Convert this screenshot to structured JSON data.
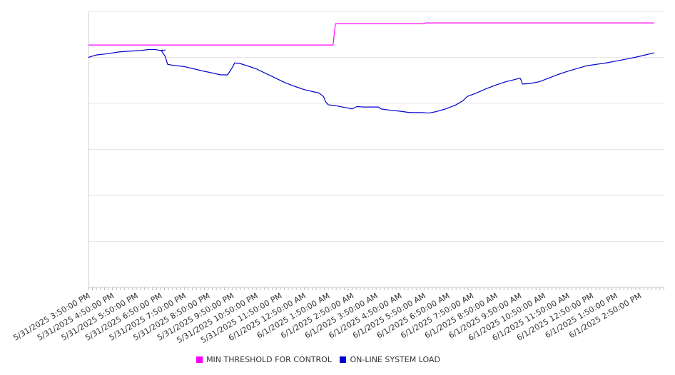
{
  "chart_data": {
    "type": "line",
    "title": "",
    "xlabel": "",
    "ylabel": "",
    "ylim": [
      0,
      6
    ],
    "grid": true,
    "legend_position": "bottom",
    "x_ticks": [
      "5/31/2025 3:50:00 PM",
      "5/31/2025 4:50:00 PM",
      "5/31/2025 5:50:00 PM",
      "5/31/2025 6:50:00 PM",
      "5/31/2025 7:50:00 PM",
      "5/31/2025 8:50:00 PM",
      "5/31/2025 9:50:00 PM",
      "5/31/2025 10:50:00 PM",
      "5/31/2025 11:50:00 PM",
      "6/1/2025 12:50:00 AM",
      "6/1/2025 1:50:00 AM",
      "6/1/2025 2:50:00 AM",
      "6/1/2025 3:50:00 AM",
      "6/1/2025 4:50:00 AM",
      "6/1/2025 5:50:00 AM",
      "6/1/2025 6:50:00 AM",
      "6/1/2025 7:50:00 AM",
      "6/1/2025 8:50:00 AM",
      "6/1/2025 9:50:00 AM",
      "6/1/2025 10:50:00 AM",
      "6/1/2025 11:50:00 AM",
      "6/1/2025 12:50:00 PM",
      "6/1/2025 1:50:00 PM",
      "6/1/2025 2:50:00 PM"
    ],
    "series": [
      {
        "name": "MIN THRESHOLD FOR CONTROL",
        "color": "#ff00ff",
        "points": [
          [
            0,
            5.27
          ],
          [
            10.2,
            5.27
          ],
          [
            10.3,
            5.73
          ],
          [
            14.0,
            5.73
          ],
          [
            14.05,
            5.75
          ],
          [
            23.6,
            5.75
          ]
        ]
      },
      {
        "name": "ON-LINE SYSTEM LOAD",
        "color": "#0000cc",
        "points": [
          [
            0,
            5.0
          ],
          [
            0.3,
            5.05
          ],
          [
            0.8,
            5.08
          ],
          [
            1.3,
            5.12
          ],
          [
            1.8,
            5.14
          ],
          [
            2.2,
            5.15
          ],
          [
            2.5,
            5.17
          ],
          [
            2.8,
            5.17
          ],
          [
            3.0,
            5.15
          ],
          [
            3.2,
            5.16
          ],
          [
            3.0,
            5.15
          ],
          [
            3.05,
            5.14
          ],
          [
            3.2,
            5.02
          ],
          [
            3.3,
            4.85
          ],
          [
            3.5,
            4.83
          ],
          [
            4.0,
            4.8
          ],
          [
            4.4,
            4.75
          ],
          [
            4.8,
            4.7
          ],
          [
            5.1,
            4.67
          ],
          [
            5.5,
            4.62
          ],
          [
            5.8,
            4.62
          ],
          [
            6.0,
            4.78
          ],
          [
            6.1,
            4.88
          ],
          [
            6.3,
            4.87
          ],
          [
            6.6,
            4.82
          ],
          [
            7.0,
            4.75
          ],
          [
            7.4,
            4.65
          ],
          [
            7.8,
            4.55
          ],
          [
            8.2,
            4.45
          ],
          [
            8.6,
            4.37
          ],
          [
            9.0,
            4.3
          ],
          [
            9.4,
            4.25
          ],
          [
            9.6,
            4.23
          ],
          [
            9.8,
            4.15
          ],
          [
            9.9,
            4.03
          ],
          [
            10.0,
            3.97
          ],
          [
            10.3,
            3.95
          ],
          [
            10.8,
            3.9
          ],
          [
            11.0,
            3.88
          ],
          [
            11.2,
            3.93
          ],
          [
            11.5,
            3.92
          ],
          [
            11.8,
            3.92
          ],
          [
            12.1,
            3.92
          ],
          [
            12.2,
            3.88
          ],
          [
            12.6,
            3.85
          ],
          [
            13.0,
            3.83
          ],
          [
            13.4,
            3.8
          ],
          [
            13.9,
            3.8
          ],
          [
            14.2,
            3.79
          ],
          [
            14.5,
            3.82
          ],
          [
            14.9,
            3.88
          ],
          [
            15.3,
            3.96
          ],
          [
            15.6,
            4.05
          ],
          [
            15.8,
            4.15
          ],
          [
            16.2,
            4.23
          ],
          [
            16.6,
            4.32
          ],
          [
            17.0,
            4.4
          ],
          [
            17.4,
            4.47
          ],
          [
            17.8,
            4.52
          ],
          [
            18.0,
            4.55
          ],
          [
            18.05,
            4.5
          ],
          [
            18.1,
            4.42
          ],
          [
            18.4,
            4.43
          ],
          [
            18.8,
            4.47
          ],
          [
            19.2,
            4.55
          ],
          [
            19.6,
            4.63
          ],
          [
            20.0,
            4.7
          ],
          [
            20.4,
            4.76
          ],
          [
            20.8,
            4.82
          ],
          [
            21.2,
            4.85
          ],
          [
            21.6,
            4.88
          ],
          [
            22.0,
            4.92
          ],
          [
            22.4,
            4.96
          ],
          [
            22.8,
            5.0
          ],
          [
            23.2,
            5.05
          ],
          [
            23.6,
            5.1
          ]
        ]
      }
    ]
  }
}
